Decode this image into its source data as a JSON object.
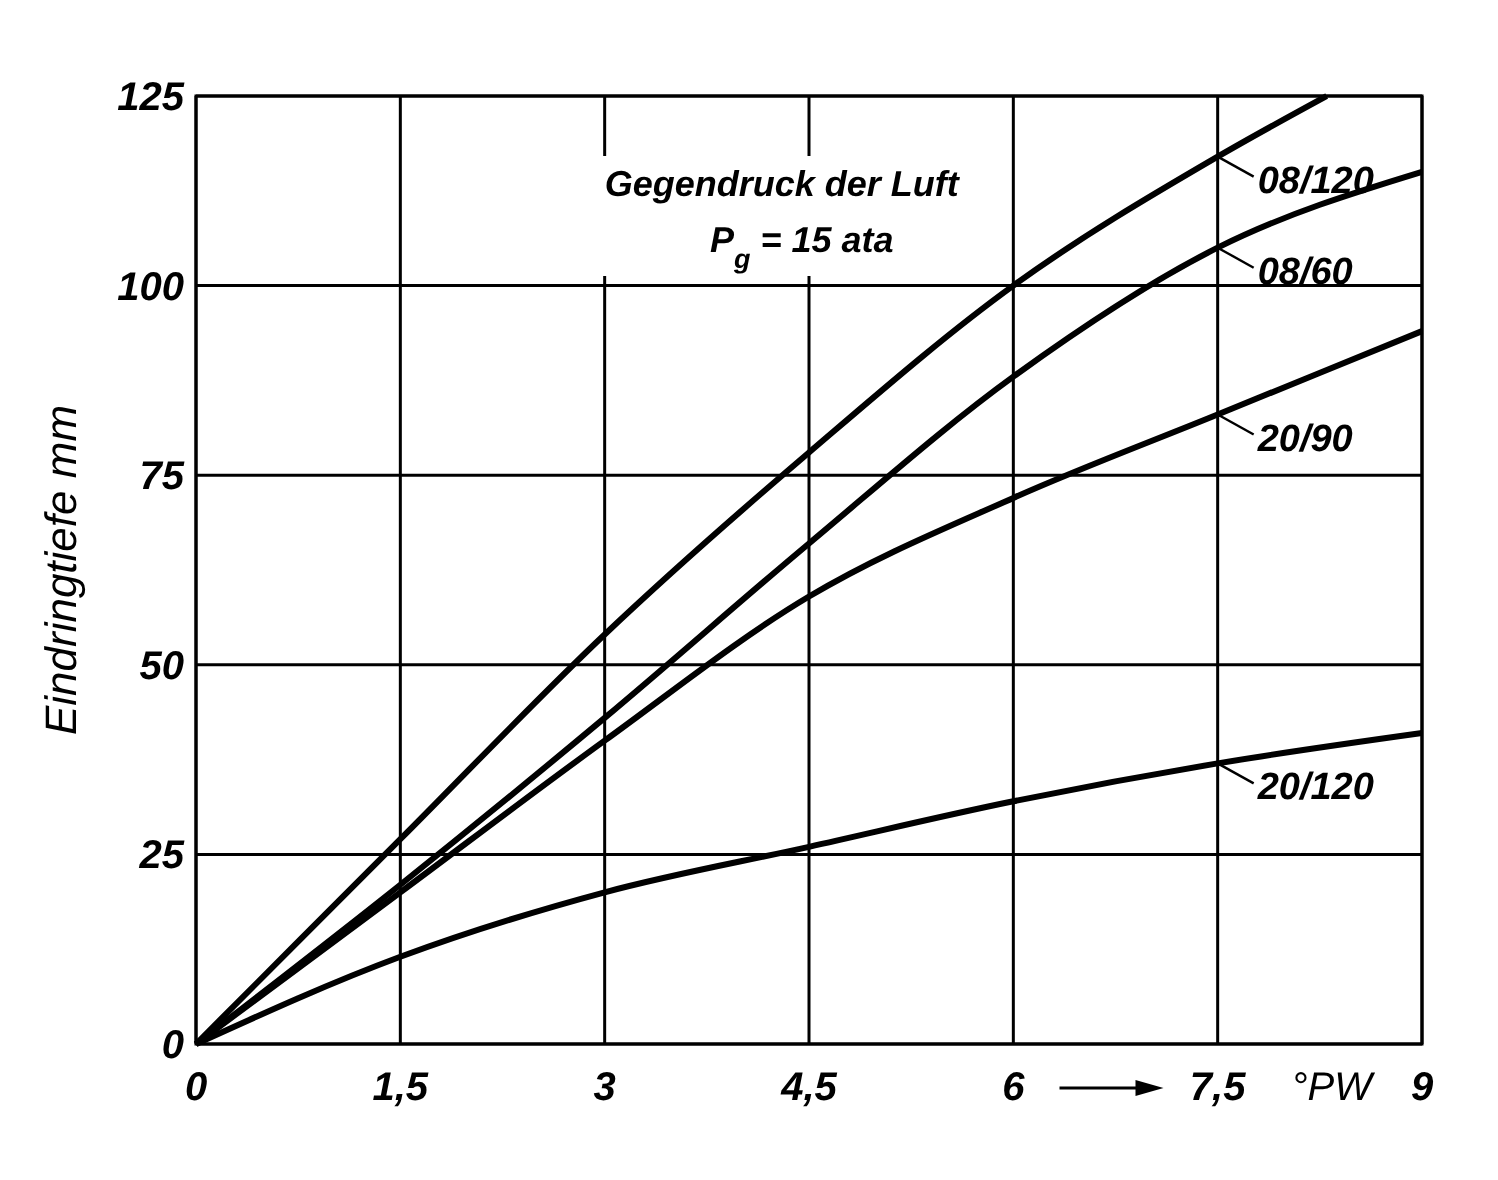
{
  "chart_data": {
    "type": "line",
    "xlabel": "°PW",
    "ylabel": "Eindringtiefe mm",
    "annotations": [
      "Gegendruck der Luft",
      "P$_{g}$ = 15 ata"
    ],
    "x": [
      0,
      1.5,
      3,
      4.5,
      6,
      7.5,
      9
    ],
    "series": [
      {
        "name": "08/120",
        "color": "#000000",
        "x": [
          0,
          1.5,
          3,
          4.5,
          6,
          7.5,
          8.3
        ],
        "values": [
          0,
          27,
          54,
          78,
          100,
          117,
          125
        ]
      },
      {
        "name": "08/60",
        "color": "#000000",
        "values": [
          0,
          21,
          43,
          66,
          88,
          105,
          115
        ]
      },
      {
        "name": "20/90",
        "color": "#000000",
        "values": [
          0,
          20,
          40,
          59,
          72,
          83,
          94
        ]
      },
      {
        "name": "20/120",
        "color": "#000000",
        "values": [
          0,
          11.5,
          20,
          26,
          32,
          37,
          41
        ]
      }
    ],
    "xlim": [
      0,
      9
    ],
    "ylim": [
      0,
      125
    ],
    "xticks": [
      0,
      {
        "value": 1.5,
        "label": "1,5"
      },
      3,
      {
        "value": 4.5,
        "label": "4,5"
      },
      6,
      {
        "value": 7.5,
        "label": "7,5"
      },
      9
    ],
    "yticks": [
      0,
      25,
      50,
      75,
      100,
      125
    ],
    "grid": true,
    "marker": "none",
    "line_style": "solid",
    "legend": "right"
  }
}
